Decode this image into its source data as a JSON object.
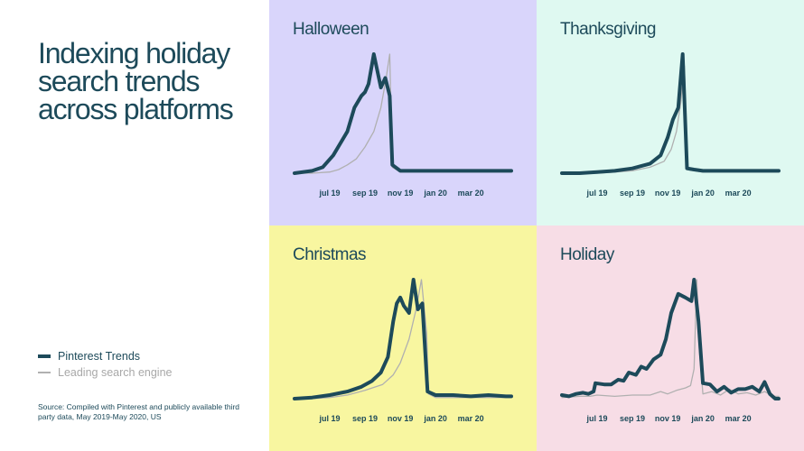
{
  "page": {
    "title": "Indexing holiday search trends across platforms",
    "legend": [
      {
        "label": "Pinterest Trends",
        "style": "primary"
      },
      {
        "label": "Leading search engine",
        "style": "secondary"
      }
    ],
    "source": "Source: Compiled with Pinterest and publicly available third party data, May 2019-May 2020, US"
  },
  "colors": {
    "pinterest": "#1d4a5a",
    "search_engine": "#b0b0b0",
    "halloween_bg": "#d9d5fb",
    "thanksgiving_bg": "#dff9f1",
    "christmas_bg": "#f8f6a0",
    "holiday_bg": "#f7dde6"
  },
  "chart_data": [
    {
      "type": "line",
      "title": "Halloween",
      "background": "#d9d5fb",
      "x_ticks": [
        "jul 19",
        "sep 19",
        "nov 19",
        "jan 20",
        "mar 20"
      ],
      "x_tick_positions": [
        2,
        4,
        6,
        8,
        10
      ],
      "xlim": [
        0,
        12.3
      ],
      "ylim": [
        0,
        100
      ],
      "series": [
        {
          "name": "Pinterest Trends",
          "style": "primary",
          "points": [
            [
              0,
              0
            ],
            [
              1,
              2
            ],
            [
              1.6,
              5
            ],
            [
              2.2,
              15
            ],
            [
              2.6,
              25
            ],
            [
              3.0,
              35
            ],
            [
              3.4,
              55
            ],
            [
              3.8,
              65
            ],
            [
              4.0,
              68
            ],
            [
              4.2,
              75
            ],
            [
              4.5,
              100
            ],
            [
              4.9,
              72
            ],
            [
              5.15,
              80
            ],
            [
              5.4,
              65
            ],
            [
              5.55,
              7
            ],
            [
              6,
              2
            ],
            [
              7,
              2
            ],
            [
              8,
              2
            ],
            [
              9,
              2
            ],
            [
              10,
              2
            ],
            [
              11,
              2
            ],
            [
              12,
              2
            ],
            [
              12.3,
              2
            ]
          ]
        },
        {
          "name": "Leading search engine",
          "style": "secondary",
          "points": [
            [
              0,
              0
            ],
            [
              1,
              0
            ],
            [
              2,
              1
            ],
            [
              2.5,
              3
            ],
            [
              3,
              7
            ],
            [
              3.5,
              12
            ],
            [
              4,
              22
            ],
            [
              4.5,
              35
            ],
            [
              4.9,
              55
            ],
            [
              5.2,
              80
            ],
            [
              5.4,
              100
            ],
            [
              5.55,
              5
            ],
            [
              6,
              1
            ],
            [
              8,
              1
            ],
            [
              10,
              1
            ],
            [
              12.3,
              1
            ]
          ]
        }
      ]
    },
    {
      "type": "line",
      "title": "Thanksgiving",
      "background": "#dff9f1",
      "x_ticks": [
        "jul 19",
        "sep 19",
        "nov 19",
        "jan 20",
        "mar 20"
      ],
      "x_tick_positions": [
        2,
        4,
        6,
        8,
        10
      ],
      "xlim": [
        0,
        12.3
      ],
      "ylim": [
        0,
        100
      ],
      "series": [
        {
          "name": "Pinterest Trends",
          "style": "primary",
          "points": [
            [
              0,
              0
            ],
            [
              1,
              0
            ],
            [
              2,
              1
            ],
            [
              3,
              2
            ],
            [
              4,
              4
            ],
            [
              5,
              8
            ],
            [
              5.6,
              15
            ],
            [
              6,
              30
            ],
            [
              6.3,
              45
            ],
            [
              6.6,
              55
            ],
            [
              6.85,
              100
            ],
            [
              7.1,
              4
            ],
            [
              7.5,
              3
            ],
            [
              8,
              2
            ],
            [
              9,
              2
            ],
            [
              10,
              2
            ],
            [
              11,
              2
            ],
            [
              12,
              2
            ],
            [
              12.3,
              2
            ]
          ]
        },
        {
          "name": "Leading search engine",
          "style": "secondary",
          "points": [
            [
              0,
              0
            ],
            [
              2,
              0
            ],
            [
              3,
              1
            ],
            [
              4,
              2
            ],
            [
              5,
              5
            ],
            [
              5.8,
              10
            ],
            [
              6.2,
              20
            ],
            [
              6.5,
              35
            ],
            [
              6.75,
              60
            ],
            [
              6.95,
              90
            ],
            [
              7.1,
              3
            ],
            [
              8,
              1
            ],
            [
              10,
              1
            ],
            [
              12.3,
              1
            ]
          ]
        }
      ]
    },
    {
      "type": "line",
      "title": "Christmas",
      "background": "#f8f6a0",
      "x_ticks": [
        "jul 19",
        "sep 19",
        "nov 19",
        "jan 20",
        "mar 20"
      ],
      "x_tick_positions": [
        2,
        4,
        6,
        8,
        10
      ],
      "xlim": [
        0,
        12.3
      ],
      "ylim": [
        0,
        100
      ],
      "series": [
        {
          "name": "Pinterest Trends",
          "style": "primary",
          "points": [
            [
              0,
              0
            ],
            [
              1,
              1
            ],
            [
              2,
              3
            ],
            [
              3,
              6
            ],
            [
              3.8,
              10
            ],
            [
              4.4,
              15
            ],
            [
              4.9,
              22
            ],
            [
              5.3,
              35
            ],
            [
              5.6,
              65
            ],
            [
              5.8,
              80
            ],
            [
              6.0,
              85
            ],
            [
              6.2,
              78
            ],
            [
              6.5,
              72
            ],
            [
              6.75,
              100
            ],
            [
              7.0,
              75
            ],
            [
              7.25,
              80
            ],
            [
              7.55,
              6
            ],
            [
              8,
              3
            ],
            [
              9,
              3
            ],
            [
              10,
              2
            ],
            [
              11,
              3
            ],
            [
              12,
              2
            ],
            [
              12.3,
              2
            ]
          ]
        },
        {
          "name": "Leading search engine",
          "style": "secondary",
          "points": [
            [
              0,
              0
            ],
            [
              1,
              0
            ],
            [
              2,
              1
            ],
            [
              3,
              3
            ],
            [
              4,
              7
            ],
            [
              5,
              12
            ],
            [
              5.6,
              20
            ],
            [
              6.0,
              30
            ],
            [
              6.5,
              50
            ],
            [
              6.9,
              75
            ],
            [
              7.2,
              100
            ],
            [
              7.5,
              55
            ],
            [
              7.6,
              4
            ],
            [
              8,
              1
            ],
            [
              10,
              1
            ],
            [
              12.3,
              1
            ]
          ]
        }
      ]
    },
    {
      "type": "line",
      "title": "Holiday",
      "background": "#f7dde6",
      "x_ticks": [
        "jul 19",
        "sep 19",
        "nov 19",
        "jan 20",
        "mar 20"
      ],
      "x_tick_positions": [
        2,
        4,
        6,
        8,
        10
      ],
      "xlim": [
        0,
        12.3
      ],
      "ylim": [
        0,
        100
      ],
      "series": [
        {
          "name": "Pinterest Trends",
          "style": "primary",
          "points": [
            [
              0,
              3
            ],
            [
              0.4,
              2
            ],
            [
              0.8,
              4
            ],
            [
              1.2,
              5
            ],
            [
              1.5,
              4
            ],
            [
              1.8,
              6
            ],
            [
              1.9,
              13
            ],
            [
              2.4,
              12
            ],
            [
              2.8,
              12
            ],
            [
              3.2,
              16
            ],
            [
              3.5,
              15
            ],
            [
              3.8,
              22
            ],
            [
              4.2,
              20
            ],
            [
              4.5,
              27
            ],
            [
              4.8,
              25
            ],
            [
              5.2,
              33
            ],
            [
              5.6,
              37
            ],
            [
              5.9,
              50
            ],
            [
              6.2,
              72
            ],
            [
              6.6,
              88
            ],
            [
              7.0,
              85
            ],
            [
              7.35,
              82
            ],
            [
              7.5,
              100
            ],
            [
              7.75,
              65
            ],
            [
              8.0,
              13
            ],
            [
              8.4,
              12
            ],
            [
              8.8,
              6
            ],
            [
              9.2,
              10
            ],
            [
              9.6,
              5
            ],
            [
              10.0,
              8
            ],
            [
              10.4,
              8
            ],
            [
              10.8,
              10
            ],
            [
              11.2,
              6
            ],
            [
              11.5,
              14
            ],
            [
              11.8,
              4
            ],
            [
              12.1,
              0
            ],
            [
              12.3,
              0
            ]
          ]
        },
        {
          "name": "Leading search engine",
          "style": "secondary",
          "points": [
            [
              0,
              1
            ],
            [
              1,
              2
            ],
            [
              1.6,
              2
            ],
            [
              2,
              3
            ],
            [
              3,
              2
            ],
            [
              4,
              3
            ],
            [
              5,
              3
            ],
            [
              5.6,
              6
            ],
            [
              6,
              4
            ],
            [
              6.5,
              7
            ],
            [
              7,
              9
            ],
            [
              7.3,
              11
            ],
            [
              7.5,
              25
            ],
            [
              7.65,
              100
            ],
            [
              7.8,
              40
            ],
            [
              8.0,
              4
            ],
            [
              8.5,
              6
            ],
            [
              9,
              3
            ],
            [
              9.5,
              8
            ],
            [
              10,
              4
            ],
            [
              10.5,
              5
            ],
            [
              11,
              3
            ],
            [
              11.5,
              6
            ],
            [
              12,
              2
            ],
            [
              12.3,
              2
            ]
          ]
        }
      ]
    }
  ]
}
